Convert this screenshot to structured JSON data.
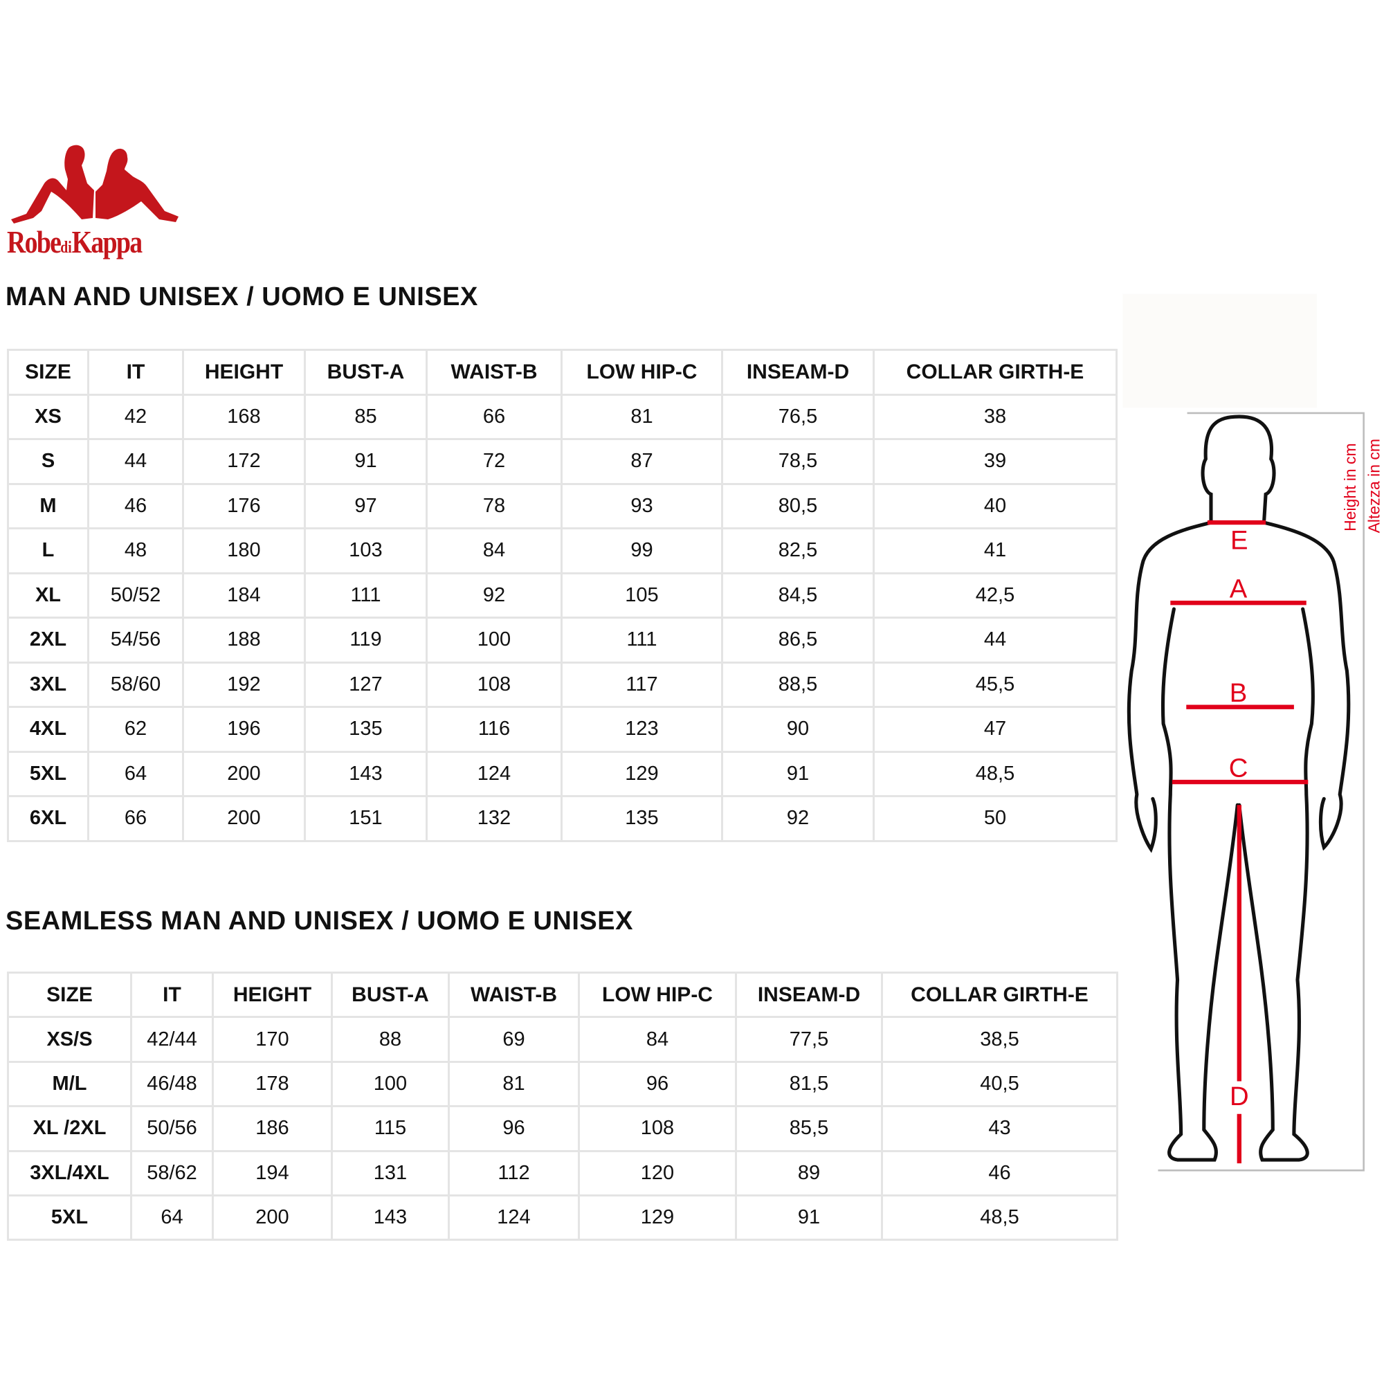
{
  "brand": {
    "logo_text_1": "Robe",
    "logo_text_2": "di",
    "logo_text_3": "Kappa",
    "color": "#c4161c"
  },
  "table1": {
    "title": "MAN AND UNISEX / UOMO E UNISEX",
    "headers": [
      "SIZE",
      "IT",
      "HEIGHT",
      "BUST-A",
      "WAIST-B",
      "LOW HIP-C",
      "INSEAM-D",
      "COLLAR GIRTH-E"
    ],
    "rows": [
      [
        "XS",
        "42",
        "168",
        "85",
        "66",
        "81",
        "76,5",
        "38"
      ],
      [
        "S",
        "44",
        "172",
        "91",
        "72",
        "87",
        "78,5",
        "39"
      ],
      [
        "M",
        "46",
        "176",
        "97",
        "78",
        "93",
        "80,5",
        "40"
      ],
      [
        "L",
        "48",
        "180",
        "103",
        "84",
        "99",
        "82,5",
        "41"
      ],
      [
        "XL",
        "50/52",
        "184",
        "111",
        "92",
        "105",
        "84,5",
        "42,5"
      ],
      [
        "2XL",
        "54/56",
        "188",
        "119",
        "100",
        "111",
        "86,5",
        "44"
      ],
      [
        "3XL",
        "58/60",
        "192",
        "127",
        "108",
        "117",
        "88,5",
        "45,5"
      ],
      [
        "4XL",
        "62",
        "196",
        "135",
        "116",
        "123",
        "90",
        "47"
      ],
      [
        "5XL",
        "64",
        "200",
        "143",
        "124",
        "129",
        "91",
        "48,5"
      ],
      [
        "6XL",
        "66",
        "200",
        "151",
        "132",
        "135",
        "92",
        "50"
      ]
    ]
  },
  "table2": {
    "title": "SEAMLESS MAN AND UNISEX / UOMO E UNISEX",
    "headers": [
      "SIZE",
      "IT",
      "HEIGHT",
      "BUST-A",
      "WAIST-B",
      "LOW HIP-C",
      "INSEAM-D",
      "COLLAR GIRTH-E"
    ],
    "rows": [
      [
        "XS/S",
        "42/44",
        "170",
        "88",
        "69",
        "84",
        "77,5",
        "38,5"
      ],
      [
        "M/L",
        "46/48",
        "178",
        "100",
        "81",
        "96",
        "81,5",
        "40,5"
      ],
      [
        "XL /2XL",
        "50/56",
        "186",
        "115",
        "96",
        "108",
        "85,5",
        "43"
      ],
      [
        "3XL/4XL",
        "58/62",
        "194",
        "131",
        "112",
        "120",
        "89",
        "46"
      ],
      [
        "5XL",
        "64",
        "200",
        "143",
        "124",
        "129",
        "91",
        "48,5"
      ]
    ]
  },
  "figure": {
    "labels": {
      "a": "A",
      "b": "B",
      "c": "C",
      "d": "D",
      "e": "E"
    },
    "height_label_en": "Height in cm",
    "height_label_it": "Altezza in cm",
    "accent": "#e1001a"
  }
}
